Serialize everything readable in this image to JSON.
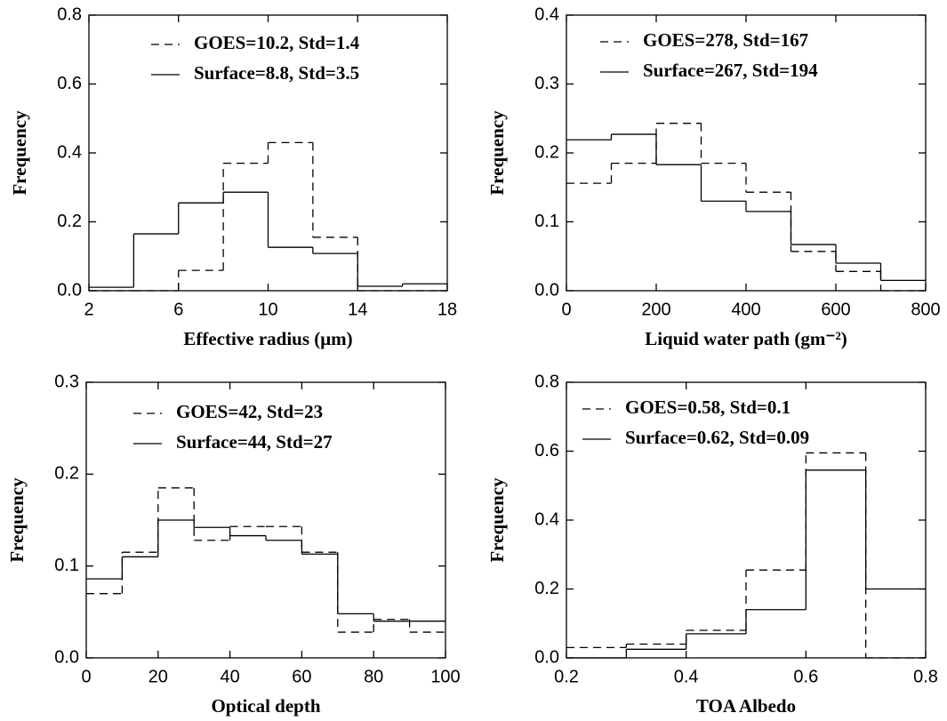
{
  "chart_data": [
    {
      "type": "histogram",
      "xlabel": "Effective radius (μm)",
      "ylabel": "Frequency",
      "bins": [
        2,
        4,
        6,
        8,
        10,
        12,
        14,
        16,
        18
      ],
      "series": [
        {
          "name": "GOES=10.2,  Std=1.4",
          "color": "#000000",
          "dashed": true,
          "values": [
            0,
            0,
            0.059,
            0.37,
            0.43,
            0.155,
            0,
            0
          ]
        },
        {
          "name": "Surface=8.8, Std=3.5",
          "color": "#000000",
          "dashed": false,
          "values": [
            0.01,
            0.165,
            0.255,
            0.286,
            0.126,
            0.108,
            0.013,
            0.02
          ]
        }
      ],
      "xlim": [
        2,
        18
      ],
      "xticks": [
        2,
        6,
        10,
        14,
        18
      ],
      "ylim": [
        0,
        0.8
      ],
      "yticks": [
        {
          "value": 0,
          "label": "0.0"
        },
        0.2,
        0.4,
        0.6,
        0.8
      ]
    },
    {
      "type": "histogram",
      "xlabel": "Liquid water path (gm⁻²)",
      "ylabel": "Frequency",
      "bins": [
        0,
        100,
        200,
        300,
        400,
        500,
        600,
        700,
        800
      ],
      "series": [
        {
          "name": "GOES=278,   Std=167",
          "color": "#000000",
          "dashed": true,
          "values": [
            0.156,
            0.185,
            0.243,
            0.185,
            0.143,
            0.057,
            0.028,
            0
          ]
        },
        {
          "name": "Surface=267, Std=194",
          "color": "#000000",
          "dashed": false,
          "values": [
            0.219,
            0.227,
            0.183,
            0.13,
            0.115,
            0.067,
            0.04,
            0.015
          ]
        }
      ],
      "xlim": [
        0,
        800
      ],
      "xticks": [
        0,
        200,
        400,
        600,
        800
      ],
      "ylim": [
        0,
        0.4
      ],
      "yticks": [
        {
          "value": 0,
          "label": "0.0"
        },
        0.1,
        0.2,
        0.3,
        0.4
      ]
    },
    {
      "type": "histogram",
      "xlabel": "Optical depth",
      "ylabel": "Frequency",
      "bins": [
        0,
        10,
        20,
        30,
        40,
        50,
        60,
        70,
        80,
        90,
        100
      ],
      "series": [
        {
          "name": "GOES=42,   Std=23",
          "color": "#000000",
          "dashed": true,
          "values": [
            0.07,
            0.115,
            0.185,
            0.128,
            0.143,
            0.143,
            0.115,
            0.028,
            0.042,
            0.028
          ]
        },
        {
          "name": "Surface=44, Std=27",
          "color": "#000000",
          "dashed": false,
          "values": [
            0.086,
            0.11,
            0.15,
            0.142,
            0.133,
            0.128,
            0.113,
            0.048,
            0.04,
            0.04
          ]
        }
      ],
      "xlim": [
        0,
        100
      ],
      "xticks": [
        0,
        20,
        40,
        60,
        80,
        100
      ],
      "ylim": [
        0,
        0.3
      ],
      "yticks": [
        {
          "value": 0,
          "label": "0.0"
        },
        0.1,
        0.2,
        0.3
      ]
    },
    {
      "type": "histogram",
      "xlabel": "TOA Albedo",
      "ylabel": "Frequency",
      "bins": [
        0.2,
        0.3,
        0.4,
        0.5,
        0.6,
        0.7,
        0.8
      ],
      "series": [
        {
          "name": "GOES=0.58,   Std=0.1",
          "color": "#000000",
          "dashed": true,
          "values": [
            0.03,
            0.04,
            0.08,
            0.255,
            0.595,
            0
          ]
        },
        {
          "name": "Surface=0.62, Std=0.09",
          "color": "#000000",
          "dashed": false,
          "values": [
            0,
            0.025,
            0.07,
            0.14,
            0.545,
            0.2
          ]
        }
      ],
      "xlim": [
        0.2,
        0.8
      ],
      "xticks": [
        0.2,
        0.4,
        0.6,
        0.8
      ],
      "ylim": [
        0,
        0.8
      ],
      "yticks": [
        {
          "value": 0,
          "label": "0.0"
        },
        0.2,
        0.4,
        0.6,
        0.8
      ]
    }
  ]
}
